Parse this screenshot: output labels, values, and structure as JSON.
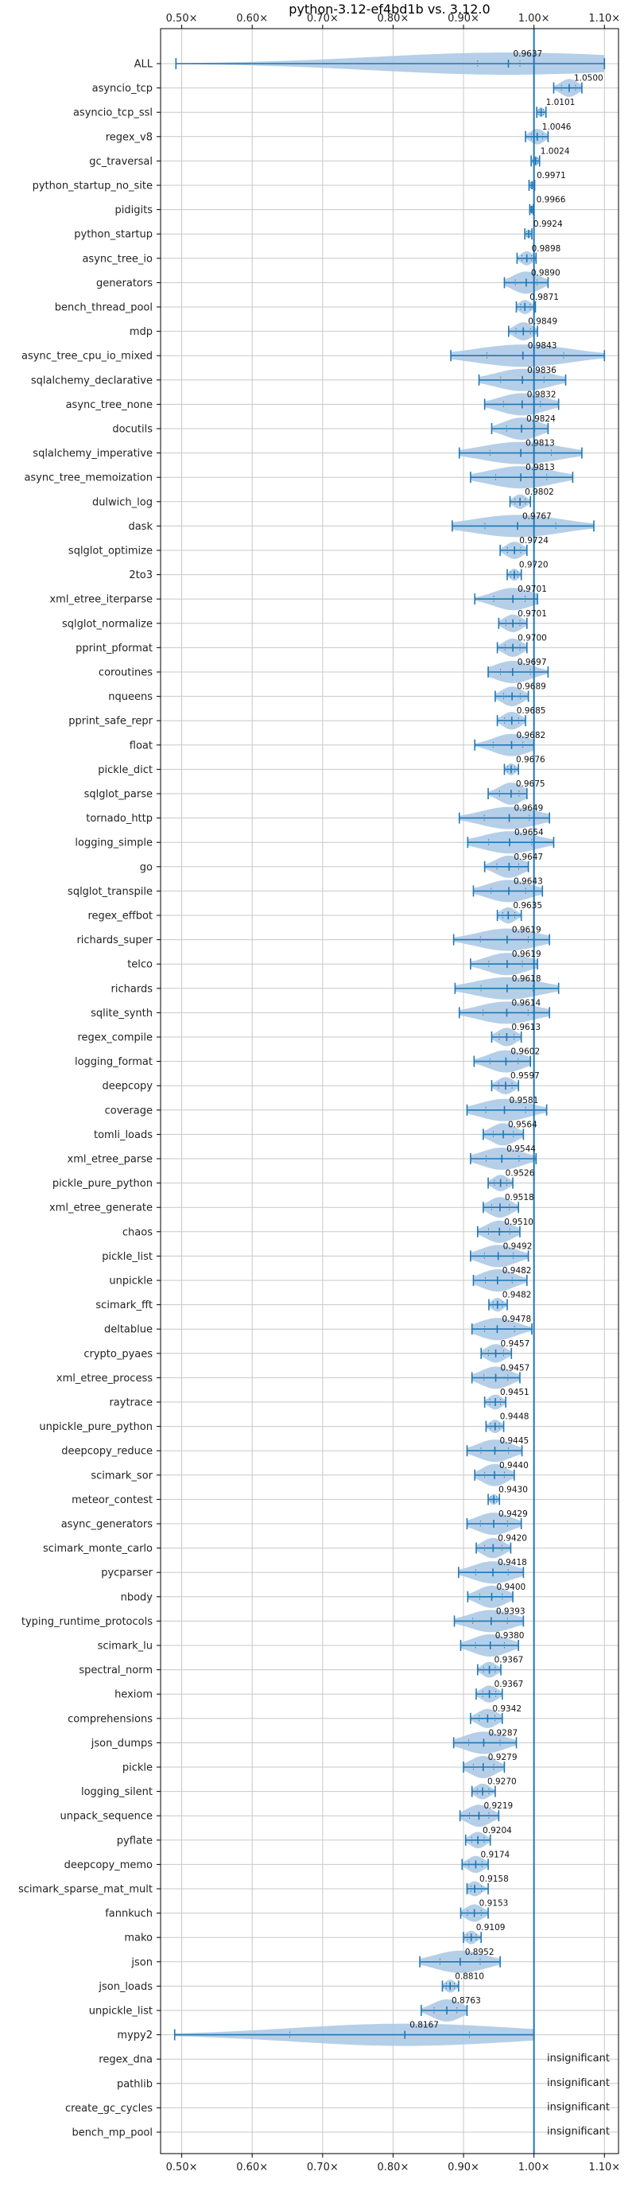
{
  "chart_data": {
    "type": "violin",
    "title": "python-3.12-ef4bd1b vs. 3.12.0",
    "xlim": [
      0.47,
      1.12
    ],
    "x_ticks": [
      "0.50×",
      "0.60×",
      "0.70×",
      "0.80×",
      "0.90×",
      "1.00×",
      "1.10×"
    ],
    "x_tick_values": [
      0.5,
      0.6,
      0.7,
      0.8,
      0.9,
      1.0,
      1.1
    ],
    "reference_line": 1.0,
    "grid": true,
    "colors": {
      "violin": "#a9c7e4",
      "line": "#1f77b4",
      "grid": "#c8c8c8"
    },
    "insignificant_label": "insignificant",
    "benchmarks": [
      {
        "name": "ALL",
        "median": 0.9637,
        "min": 0.4918,
        "max": 1.1,
        "q1": 0.92,
        "q3": 0.98
      },
      {
        "name": "asyncio_tcp",
        "median": 1.05,
        "min": 1.028,
        "max": 1.068
      },
      {
        "name": "asyncio_tcp_ssl",
        "median": 1.0101,
        "min": 1.004,
        "max": 1.017
      },
      {
        "name": "regex_v8",
        "median": 1.0046,
        "min": 0.988,
        "max": 1.02
      },
      {
        "name": "gc_traversal",
        "median": 1.0024,
        "min": 0.996,
        "max": 1.008
      },
      {
        "name": "python_startup_no_site",
        "median": 0.9971,
        "min": 0.993,
        "max": 1.001
      },
      {
        "name": "pidigits",
        "median": 0.9966,
        "min": 0.994,
        "max": 0.999
      },
      {
        "name": "python_startup",
        "median": 0.9924,
        "min": 0.987,
        "max": 0.997
      },
      {
        "name": "async_tree_io",
        "median": 0.9898,
        "min": 0.976,
        "max": 1.003
      },
      {
        "name": "generators",
        "median": 0.989,
        "min": 0.958,
        "max": 1.02
      },
      {
        "name": "bench_thread_pool",
        "median": 0.9871,
        "min": 0.975,
        "max": 1.002
      },
      {
        "name": "mdp",
        "median": 0.9849,
        "min": 0.964,
        "max": 1.005
      },
      {
        "name": "async_tree_cpu_io_mixed",
        "median": 0.9843,
        "min": 0.882,
        "max": 1.1
      },
      {
        "name": "sqlalchemy_declarative",
        "median": 0.9836,
        "min": 0.922,
        "max": 1.045
      },
      {
        "name": "async_tree_none",
        "median": 0.9832,
        "min": 0.93,
        "max": 1.035
      },
      {
        "name": "docutils",
        "median": 0.9824,
        "min": 0.94,
        "max": 1.02
      },
      {
        "name": "sqlalchemy_imperative",
        "median": 0.9813,
        "min": 0.894,
        "max": 1.068
      },
      {
        "name": "async_tree_memoization",
        "median": 0.9813,
        "min": 0.91,
        "max": 1.055
      },
      {
        "name": "dulwich_log",
        "median": 0.9802,
        "min": 0.966,
        "max": 0.995
      },
      {
        "name": "dask",
        "median": 0.9767,
        "min": 0.884,
        "max": 1.085
      },
      {
        "name": "sqlglot_optimize",
        "median": 0.9724,
        "min": 0.952,
        "max": 0.99
      },
      {
        "name": "2to3",
        "median": 0.972,
        "min": 0.962,
        "max": 0.982
      },
      {
        "name": "xml_etree_iterparse",
        "median": 0.9701,
        "min": 0.916,
        "max": 1.005
      },
      {
        "name": "sqlglot_normalize",
        "median": 0.9701,
        "min": 0.95,
        "max": 0.99
      },
      {
        "name": "pprint_pformat",
        "median": 0.97,
        "min": 0.948,
        "max": 0.99
      },
      {
        "name": "coroutines",
        "median": 0.9697,
        "min": 0.935,
        "max": 1.02
      },
      {
        "name": "nqueens",
        "median": 0.9689,
        "min": 0.945,
        "max": 0.992
      },
      {
        "name": "pprint_safe_repr",
        "median": 0.9685,
        "min": 0.948,
        "max": 0.988
      },
      {
        "name": "float",
        "median": 0.9682,
        "min": 0.916,
        "max": 1.0
      },
      {
        "name": "pickle_dict",
        "median": 0.9676,
        "min": 0.958,
        "max": 0.978
      },
      {
        "name": "sqlglot_parse",
        "median": 0.9675,
        "min": 0.935,
        "max": 0.99
      },
      {
        "name": "tornado_http",
        "median": 0.9649,
        "min": 0.894,
        "max": 1.022
      },
      {
        "name": "logging_simple",
        "median": 0.9654,
        "min": 0.906,
        "max": 1.028
      },
      {
        "name": "go",
        "median": 0.9647,
        "min": 0.93,
        "max": 0.992
      },
      {
        "name": "sqlglot_transpile",
        "median": 0.9643,
        "min": 0.914,
        "max": 1.012
      },
      {
        "name": "regex_effbot",
        "median": 0.9635,
        "min": 0.948,
        "max": 0.982
      },
      {
        "name": "richards_super",
        "median": 0.9619,
        "min": 0.886,
        "max": 1.022
      },
      {
        "name": "telco",
        "median": 0.9619,
        "min": 0.91,
        "max": 1.005
      },
      {
        "name": "richards",
        "median": 0.9618,
        "min": 0.888,
        "max": 1.035
      },
      {
        "name": "sqlite_synth",
        "median": 0.9614,
        "min": 0.894,
        "max": 1.022
      },
      {
        "name": "regex_compile",
        "median": 0.9613,
        "min": 0.94,
        "max": 0.982
      },
      {
        "name": "logging_format",
        "median": 0.9602,
        "min": 0.915,
        "max": 0.995
      },
      {
        "name": "deepcopy",
        "median": 0.9597,
        "min": 0.94,
        "max": 0.978
      },
      {
        "name": "coverage",
        "median": 0.9581,
        "min": 0.905,
        "max": 1.018
      },
      {
        "name": "tomli_loads",
        "median": 0.9564,
        "min": 0.928,
        "max": 0.985
      },
      {
        "name": "xml_etree_parse",
        "median": 0.9544,
        "min": 0.91,
        "max": 1.003
      },
      {
        "name": "pickle_pure_python",
        "median": 0.9526,
        "min": 0.935,
        "max": 0.97
      },
      {
        "name": "xml_etree_generate",
        "median": 0.9518,
        "min": 0.928,
        "max": 0.978
      },
      {
        "name": "chaos",
        "median": 0.951,
        "min": 0.92,
        "max": 0.98
      },
      {
        "name": "pickle_list",
        "median": 0.9492,
        "min": 0.91,
        "max": 0.992
      },
      {
        "name": "unpickle",
        "median": 0.9482,
        "min": 0.914,
        "max": 0.99
      },
      {
        "name": "scimark_fft",
        "median": 0.9482,
        "min": 0.936,
        "max": 0.962
      },
      {
        "name": "deltablue",
        "median": 0.9478,
        "min": 0.912,
        "max": 0.997
      },
      {
        "name": "crypto_pyaes",
        "median": 0.9457,
        "min": 0.925,
        "max": 0.968
      },
      {
        "name": "xml_etree_process",
        "median": 0.9457,
        "min": 0.912,
        "max": 0.98
      },
      {
        "name": "raytrace",
        "median": 0.9451,
        "min": 0.93,
        "max": 0.96
      },
      {
        "name": "unpickle_pure_python",
        "median": 0.9448,
        "min": 0.932,
        "max": 0.957
      },
      {
        "name": "deepcopy_reduce",
        "median": 0.9445,
        "min": 0.905,
        "max": 0.983
      },
      {
        "name": "scimark_sor",
        "median": 0.944,
        "min": 0.916,
        "max": 0.972
      },
      {
        "name": "meteor_contest",
        "median": 0.943,
        "min": 0.935,
        "max": 0.951
      },
      {
        "name": "async_generators",
        "median": 0.9429,
        "min": 0.905,
        "max": 0.982
      },
      {
        "name": "scimark_monte_carlo",
        "median": 0.942,
        "min": 0.918,
        "max": 0.967
      },
      {
        "name": "pycparser",
        "median": 0.9418,
        "min": 0.893,
        "max": 0.985
      },
      {
        "name": "nbody",
        "median": 0.94,
        "min": 0.906,
        "max": 0.97
      },
      {
        "name": "typing_runtime_protocols",
        "median": 0.9393,
        "min": 0.887,
        "max": 0.985
      },
      {
        "name": "scimark_lu",
        "median": 0.938,
        "min": 0.896,
        "max": 0.978
      },
      {
        "name": "spectral_norm",
        "median": 0.9367,
        "min": 0.92,
        "max": 0.953
      },
      {
        "name": "hexiom",
        "median": 0.9367,
        "min": 0.918,
        "max": 0.955
      },
      {
        "name": "comprehensions",
        "median": 0.9342,
        "min": 0.91,
        "max": 0.955
      },
      {
        "name": "json_dumps",
        "median": 0.9287,
        "min": 0.886,
        "max": 0.975
      },
      {
        "name": "pickle",
        "median": 0.9279,
        "min": 0.9,
        "max": 0.958
      },
      {
        "name": "logging_silent",
        "median": 0.927,
        "min": 0.912,
        "max": 0.945
      },
      {
        "name": "unpack_sequence",
        "median": 0.9219,
        "min": 0.895,
        "max": 0.95
      },
      {
        "name": "pyflate",
        "median": 0.9204,
        "min": 0.903,
        "max": 0.938
      },
      {
        "name": "deepcopy_memo",
        "median": 0.9174,
        "min": 0.898,
        "max": 0.935
      },
      {
        "name": "scimark_sparse_mat_mult",
        "median": 0.9158,
        "min": 0.905,
        "max": 0.935
      },
      {
        "name": "fannkuch",
        "median": 0.9153,
        "min": 0.896,
        "max": 0.935
      },
      {
        "name": "mako",
        "median": 0.9109,
        "min": 0.9,
        "max": 0.925
      },
      {
        "name": "json",
        "median": 0.8952,
        "min": 0.838,
        "max": 0.952
      },
      {
        "name": "json_loads",
        "median": 0.881,
        "min": 0.87,
        "max": 0.893
      },
      {
        "name": "unpickle_list",
        "median": 0.8763,
        "min": 0.84,
        "max": 0.905
      },
      {
        "name": "mypy2",
        "median": 0.8167,
        "min": 0.49,
        "max": 1.0
      },
      {
        "name": "regex_dna",
        "insignificant": true
      },
      {
        "name": "pathlib",
        "insignificant": true
      },
      {
        "name": "create_gc_cycles",
        "insignificant": true
      },
      {
        "name": "bench_mp_pool",
        "insignificant": true
      }
    ]
  }
}
